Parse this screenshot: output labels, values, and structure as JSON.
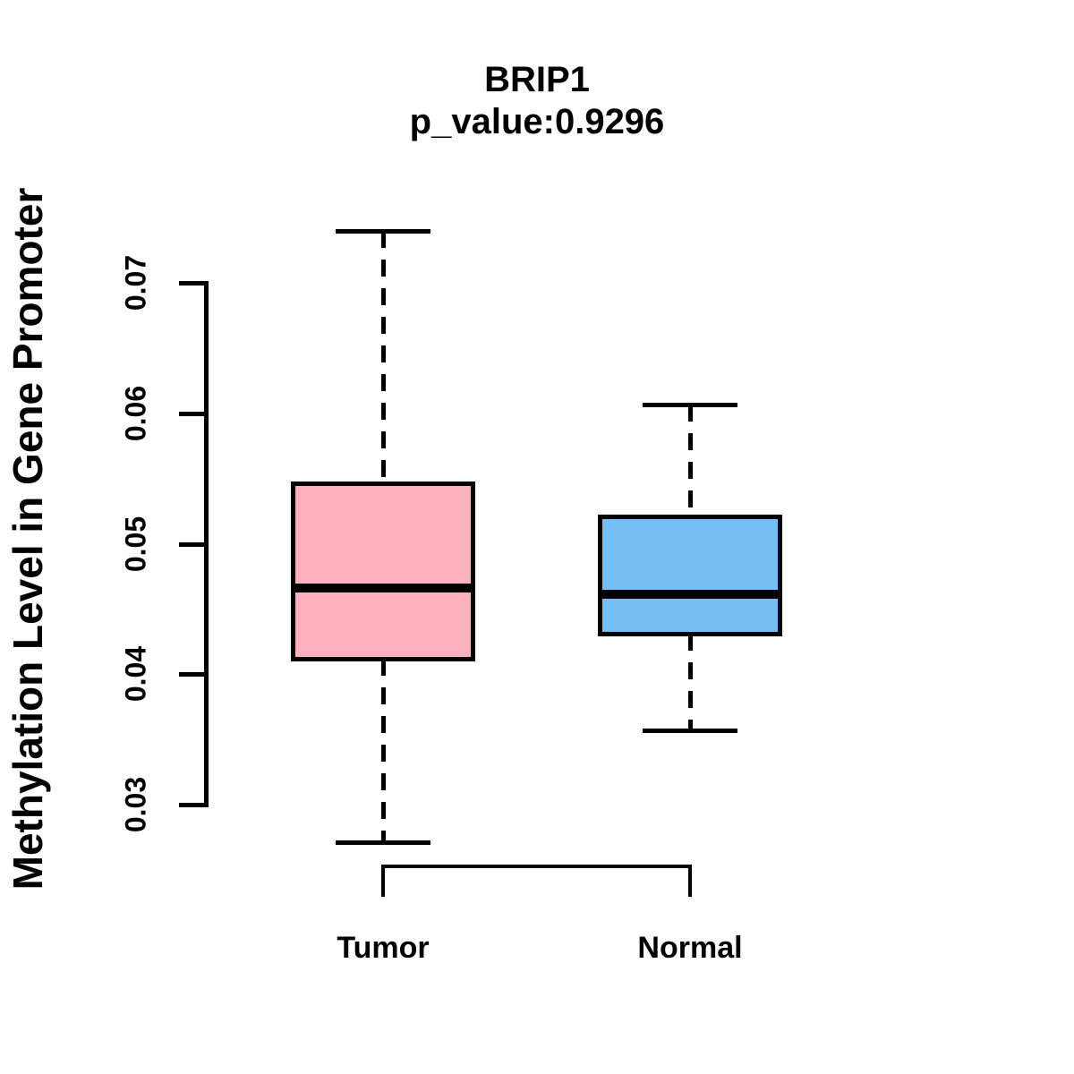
{
  "title": {
    "line1": "BRIP1",
    "line2": "p_value:0.9296"
  },
  "y_axis": {
    "label": "Methylation Level in Gene Promoter",
    "tick_labels": [
      "0.03",
      "0.04",
      "0.05",
      "0.06",
      "0.07"
    ]
  },
  "chart_data": {
    "type": "boxplot",
    "title": "BRIP1",
    "subtitle": "p_value:0.9296",
    "ylabel": "Methylation Level in Gene Promoter",
    "ylim": [
      0.027,
      0.075
    ],
    "y_ticks": [
      0.03,
      0.04,
      0.05,
      0.06,
      0.07
    ],
    "categories": [
      "Tumor",
      "Normal"
    ],
    "groups": [
      {
        "label": "Tumor",
        "color": "#FFB1C1",
        "whisker_low": 0.0271,
        "q1": 0.0412,
        "median": 0.0466,
        "q3": 0.0546,
        "whisker_high": 0.074
      },
      {
        "label": "Normal",
        "color": "#74BFF6",
        "whisker_low": 0.0357,
        "q1": 0.0431,
        "median": 0.0461,
        "q3": 0.0521,
        "whisker_high": 0.0607
      }
    ],
    "stroke_color": "#000000",
    "grid": false,
    "legend": false
  }
}
